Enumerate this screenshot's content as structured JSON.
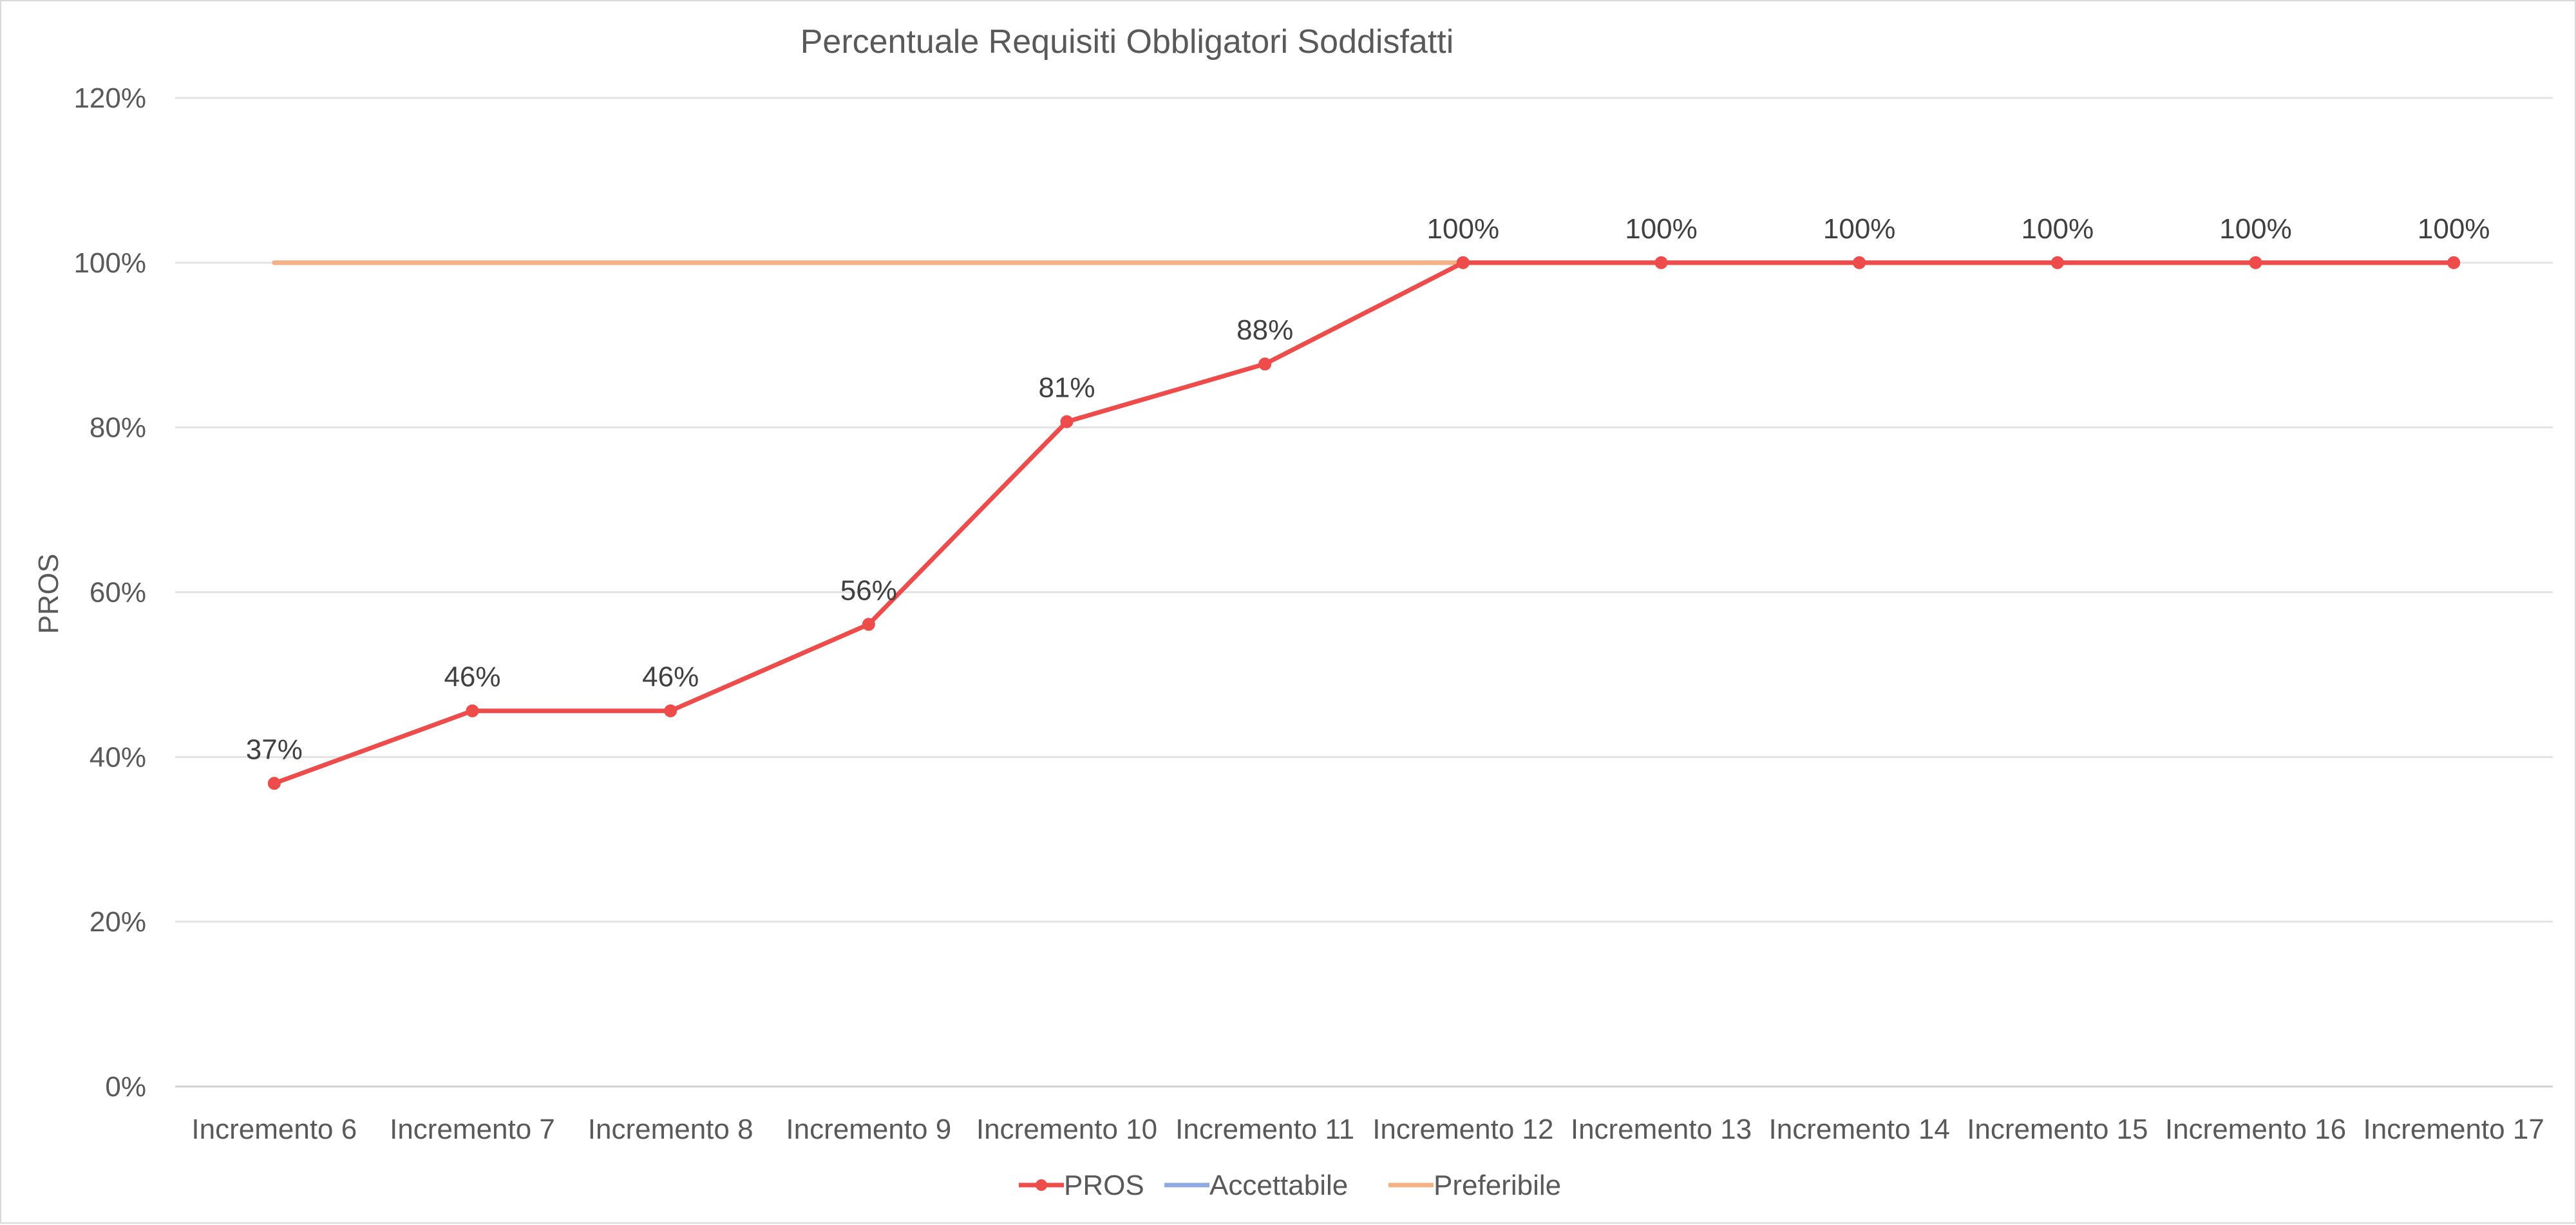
{
  "chart_data": {
    "type": "line",
    "title": "Percentuale Requisiti Obbligatori Soddisfatti",
    "xlabel": "",
    "ylabel": "PROS",
    "ylim": [
      0,
      120
    ],
    "y_ticks": [
      0,
      20,
      40,
      60,
      80,
      100,
      120
    ],
    "y_tick_labels": [
      "0%",
      "20%",
      "40%",
      "60%",
      "80%",
      "100%",
      "120%"
    ],
    "grid": true,
    "legend_position": "bottom",
    "categories": [
      "Incremento 6",
      "Incremento 7",
      "Incremento 8",
      "Incremento 9",
      "Incremento 10",
      "Incremento 11",
      "Incremento 12",
      "Incremento 13",
      "Incremento 14",
      "Incremento 15",
      "Incremento 16",
      "Incremento 17"
    ],
    "series": [
      {
        "name": "PROS",
        "color": "#ee4b4b",
        "markers": true,
        "values": [
          36.8,
          45.6,
          45.6,
          56.1,
          80.7,
          87.7,
          100,
          100,
          100,
          100,
          100,
          100
        ],
        "data_labels": [
          "37%",
          "46%",
          "46%",
          "56%",
          "81%",
          "88%",
          "100%",
          "100%",
          "100%",
          "100%",
          "100%",
          "100%"
        ]
      },
      {
        "name": "Accettabile",
        "color": "#8faadc",
        "markers": false,
        "values": [
          100,
          100,
          100,
          100,
          100,
          100,
          100,
          100,
          100,
          100,
          100,
          100
        ]
      },
      {
        "name": "Preferibile",
        "color": "#f4b183",
        "markers": false,
        "values": [
          100,
          100,
          100,
          100,
          100,
          100,
          100,
          100,
          100,
          100,
          100,
          100
        ]
      }
    ]
  }
}
